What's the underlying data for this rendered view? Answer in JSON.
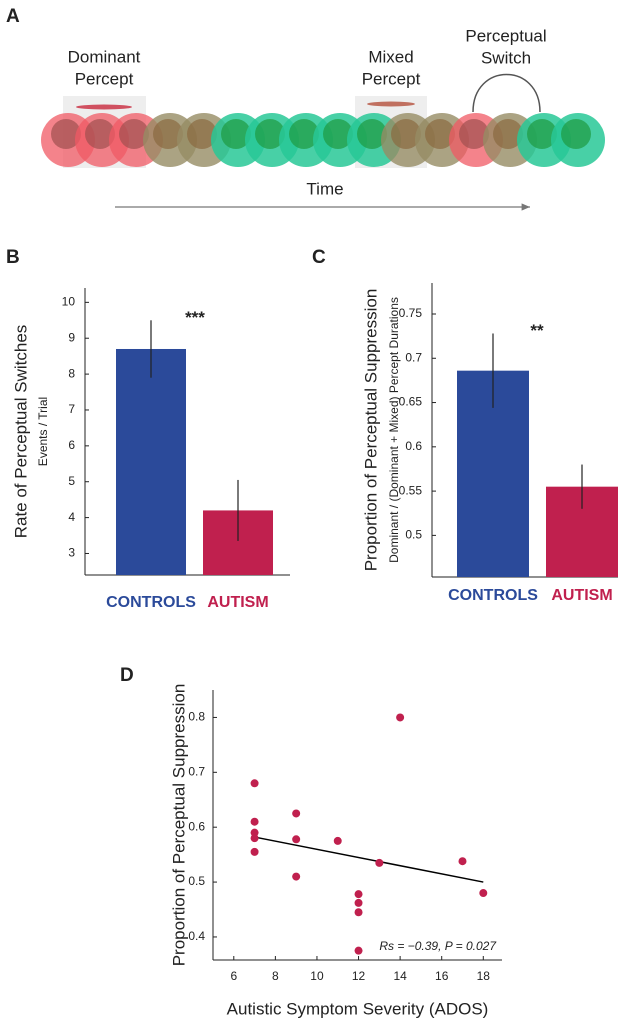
{
  "panel_a": {
    "label": "A",
    "dominant": [
      "Dominant",
      "Percept"
    ],
    "mixed": [
      "Mixed",
      "Percept"
    ],
    "switch": [
      "Perceptual",
      "Switch"
    ],
    "axis": "Time"
  },
  "chart_data": [
    {
      "type": "bar",
      "label": "B",
      "y_label": "Rate of Perceptual Switches",
      "y_sublabel": "Events / Trial",
      "categories": [
        "CONTROLS",
        "AUTISM"
      ],
      "values": [
        8.7,
        4.2
      ],
      "errors": [
        0.8,
        0.85
      ],
      "colors": [
        "#2b4a9a",
        "#c0204e"
      ],
      "annotation": "***",
      "ylim": [
        2.4,
        10.4
      ],
      "yticks": [
        3,
        4,
        5,
        6,
        7,
        8,
        9,
        10
      ]
    },
    {
      "type": "bar",
      "label": "C",
      "y_label": "Proportion of Perceptual Suppression",
      "y_sublabel": "Dominant / (Dominant + Mixed) Percept Durations",
      "categories": [
        "CONTROLS",
        "AUTISM"
      ],
      "values": [
        0.686,
        0.555
      ],
      "errors": [
        0.042,
        0.025
      ],
      "colors": [
        "#2b4a9a",
        "#c0204e"
      ],
      "annotation": "**",
      "ylim": [
        0.453,
        0.785
      ],
      "yticks": [
        0.5,
        0.55,
        0.6,
        0.65,
        0.7,
        0.75
      ]
    },
    {
      "type": "scatter",
      "label": "D",
      "x_label": "Autistic Symptom Severity (ADOS)",
      "y_label": "Proportion of Perceptual Suppression",
      "x": [
        7,
        7,
        7,
        7,
        7,
        9,
        9,
        9,
        11,
        13,
        12,
        12,
        12,
        12,
        14,
        17,
        18
      ],
      "values": [
        0.68,
        0.61,
        0.59,
        0.58,
        0.555,
        0.625,
        0.578,
        0.51,
        0.575,
        0.535,
        0.478,
        0.462,
        0.445,
        0.375,
        0.8,
        0.538,
        0.48
      ],
      "color": "#c0204e",
      "fit": {
        "x": [
          7,
          18
        ],
        "values": [
          0.582,
          0.5
        ]
      },
      "annotation": "Rs = −0.39, P = 0.027",
      "xlim": [
        5,
        18.9
      ],
      "ylim": [
        0.358,
        0.85
      ],
      "xticks": [
        6,
        8,
        10,
        12,
        14,
        16,
        18
      ],
      "yticks": [
        0.4,
        0.5,
        0.6,
        0.7,
        0.8
      ]
    }
  ]
}
